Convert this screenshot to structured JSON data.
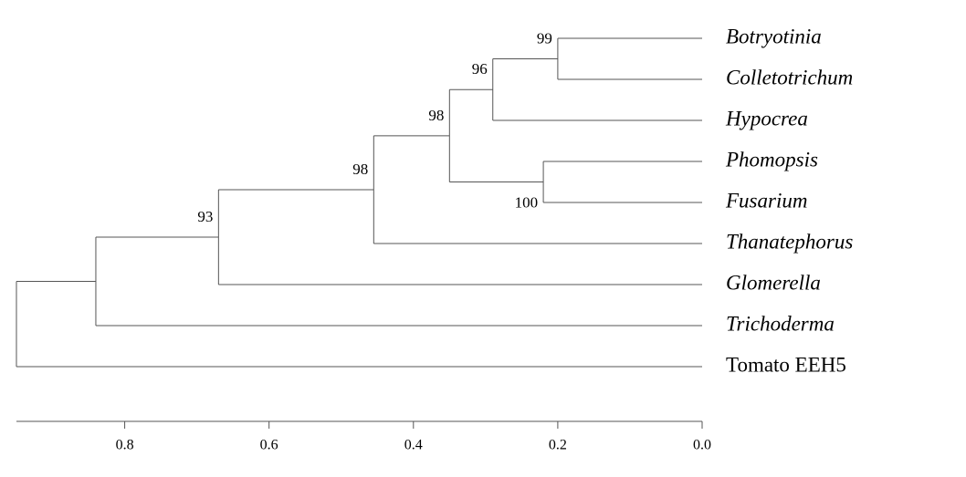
{
  "tree": {
    "height": 0.95,
    "children": [
      {
        "height": 0.84,
        "children": [
          {
            "height": 0.67,
            "support": 93,
            "children": [
              {
                "height": 0.455,
                "support": 98,
                "children": [
                  {
                    "height": 0.35,
                    "support": 98,
                    "children": [
                      {
                        "height": 0.29,
                        "support": 96,
                        "children": [
                          {
                            "height": 0.2,
                            "support": 99,
                            "children": [
                              {
                                "label": "Botryotinia",
                                "italic": true
                              },
                              {
                                "label": "Colletotrichum",
                                "italic": true
                              }
                            ]
                          },
                          {
                            "label": "Hypocrea",
                            "italic": true
                          }
                        ]
                      },
                      {
                        "height": 0.22,
                        "support": 100,
                        "support_side": "below",
                        "children": [
                          {
                            "label": "Phomopsis",
                            "italic": true
                          },
                          {
                            "label": "Fusarium",
                            "italic": true
                          }
                        ]
                      }
                    ]
                  },
                  {
                    "label": "Thanatephorus",
                    "italic": true
                  }
                ]
              },
              {
                "label": "Glomerella",
                "italic": true
              }
            ]
          },
          {
            "label": "Trichoderma",
            "italic": true
          }
        ]
      },
      {
        "label": "Tomato EEH5",
        "italic": false
      }
    ]
  },
  "axis": {
    "xlim": [
      0.95,
      0
    ],
    "xticks": [
      0.8,
      0.6,
      0.4,
      0.2,
      {
        "value": 0,
        "label": "0.0"
      }
    ]
  }
}
